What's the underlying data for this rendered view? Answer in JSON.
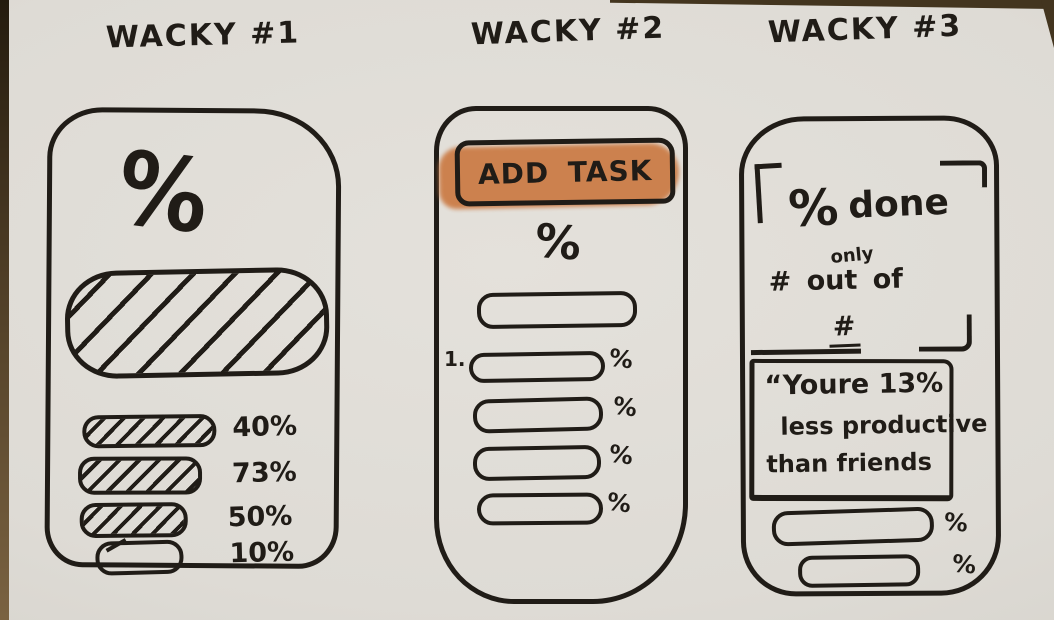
{
  "scene": {
    "description": "hand-drawn wireframe sketch of three mobile app concepts on paper",
    "colors": {
      "paper": "#dfdcd6",
      "ink": "#201c17",
      "highlighter": "#cb7a43",
      "table_edge": "#43351f",
      "bottom_strip": "#ffffff"
    }
  },
  "mockups": [
    {
      "title": "WACKY #1",
      "hero_symbol": "%",
      "rows": [
        {
          "value": "40%"
        },
        {
          "value": "73%"
        },
        {
          "value": "50%"
        },
        {
          "value": "10%"
        }
      ]
    },
    {
      "title": "WACKY #2",
      "add_task_label": "ADD TASK",
      "hero_symbol": "%",
      "tasks": [
        {
          "prefix": "",
          "suffix": ""
        },
        {
          "prefix": "1.",
          "suffix": "%"
        },
        {
          "prefix": "",
          "suffix": "%"
        },
        {
          "prefix": "",
          "suffix": "%"
        },
        {
          "prefix": "",
          "suffix": "%"
        }
      ]
    },
    {
      "title": "WACKY #3",
      "header_percent": "%",
      "header_word": "done",
      "note_small": "only",
      "note_line": "# out of",
      "note_hash": "#",
      "quote_lines": [
        "“Youre 13%",
        "less productive",
        "than friends"
      ],
      "bars": [
        {
          "suffix": "%"
        },
        {
          "suffix": "%"
        }
      ]
    }
  ]
}
